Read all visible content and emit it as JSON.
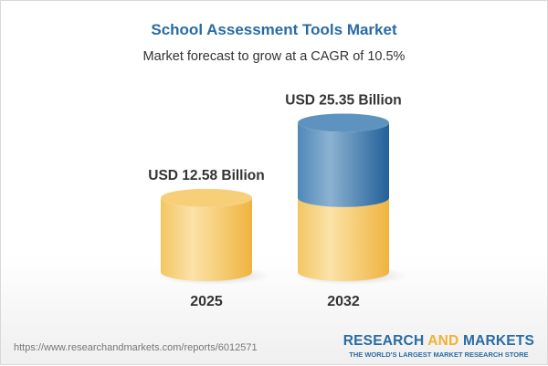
{
  "chart_data": {
    "type": "bar",
    "style": "3d-cylinder",
    "title": "School Assessment Tools Market",
    "subtitle": "Market forecast to grow at a CAGR of 10.5%",
    "categories": [
      "2025",
      "2032"
    ],
    "values": [
      12.58,
      25.35
    ],
    "data_labels": [
      "USD 12.58 Billion",
      "USD 25.35 Billion"
    ],
    "unit": "USD Billion",
    "colors": {
      "base": "#f2c25a",
      "growth": "#3f7aab"
    }
  },
  "footer": {
    "url": "https://www.researchandmarkets.com/reports/6012571",
    "logo_part1": "RESEARCH ",
    "logo_part2": "AND",
    "logo_part3": " MARKETS",
    "logo_tagline": "THE WORLD'S LARGEST MARKET RESEARCH STORE"
  }
}
